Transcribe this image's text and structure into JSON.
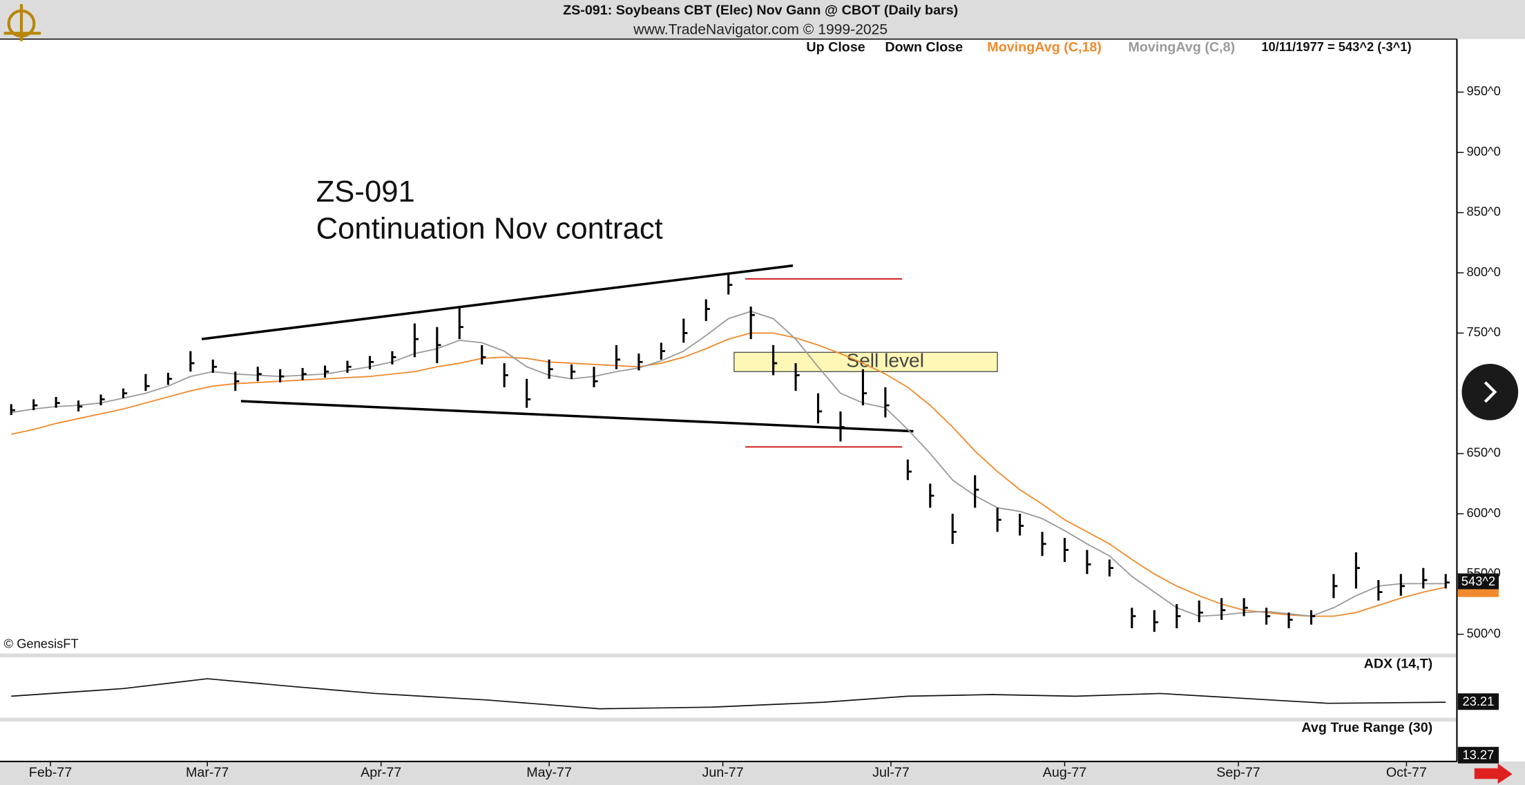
{
  "chart_data": {
    "type": "ohlc",
    "title": "ZS-091:  Soybeans CBT (Elec) Nov Gann @ CBOT  (Daily bars)",
    "subtitle": "www.TradeNavigator.com © 1999-2025",
    "annotations": [
      "ZS-091",
      "Continuation Nov contract"
    ],
    "copyright": "© GenesisFT",
    "legend_extra": [
      "Up Close",
      "Down Close"
    ],
    "status": "10/11/1977 = 543^2 (-3^1)",
    "xlim": [
      23,
      283
    ],
    "ylim": [
      484,
      994
    ],
    "xticks": [
      {
        "value": 32,
        "label": "Feb-77"
      },
      {
        "value": 60,
        "label": "Mar-77"
      },
      {
        "value": 91,
        "label": "Apr-77"
      },
      {
        "value": 121,
        "label": "May-77"
      },
      {
        "value": 152,
        "label": "Jun-77"
      },
      {
        "value": 182,
        "label": "Jul-77"
      },
      {
        "value": 213,
        "label": "Aug-77"
      },
      {
        "value": 244,
        "label": "Sep-77"
      },
      {
        "value": 274,
        "label": "Oct-77"
      }
    ],
    "yticks": [
      {
        "value": 500,
        "label": "500^0"
      },
      {
        "value": 550,
        "label": "550^0"
      },
      {
        "value": 600,
        "label": "600^0"
      },
      {
        "value": 650,
        "label": "650^0"
      },
      {
        "value": 750,
        "label": "750^0"
      },
      {
        "value": 800,
        "label": "800^0"
      },
      {
        "value": 850,
        "label": "850^0"
      },
      {
        "value": 900,
        "label": "900^0"
      },
      {
        "value": 950,
        "label": "950^0"
      }
    ],
    "x": [
      25,
      29,
      33,
      37,
      41,
      45,
      49,
      53,
      57,
      61,
      65,
      69,
      73,
      77,
      81,
      85,
      89,
      93,
      97,
      101,
      105,
      109,
      113,
      117,
      121,
      125,
      129,
      133,
      137,
      141,
      145,
      149,
      153,
      157,
      161,
      165,
      169,
      173,
      177,
      181,
      185,
      189,
      193,
      197,
      201,
      205,
      209,
      213,
      217,
      221,
      225,
      229,
      233,
      237,
      241,
      245,
      249,
      253,
      257,
      261,
      265,
      269,
      273,
      277,
      281
    ],
    "bars": {
      "color": "#000000",
      "high": [
        691,
        695,
        697,
        694,
        699,
        704,
        716,
        717,
        735,
        728,
        718,
        722,
        720,
        721,
        723,
        727,
        731,
        735,
        758,
        755,
        772,
        740,
        725,
        712,
        728,
        724,
        722,
        740,
        733,
        742,
        762,
        778,
        800,
        772,
        740,
        725,
        700,
        685,
        720,
        705,
        645,
        625,
        600,
        632,
        605,
        600,
        585,
        580,
        570,
        562,
        522,
        520,
        525,
        528,
        530,
        530,
        522,
        518,
        520,
        550,
        568,
        545,
        550,
        555,
        550
      ],
      "low": [
        682,
        686,
        688,
        685,
        690,
        696,
        702,
        707,
        718,
        717,
        702,
        710,
        709,
        711,
        713,
        717,
        720,
        724,
        730,
        725,
        745,
        724,
        705,
        688,
        712,
        712,
        705,
        720,
        719,
        728,
        742,
        760,
        782,
        745,
        715,
        702,
        675,
        660,
        690,
        680,
        628,
        605,
        575,
        605,
        585,
        582,
        565,
        560,
        550,
        548,
        505,
        502,
        505,
        510,
        512,
        515,
        508,
        505,
        508,
        530,
        538,
        528,
        532,
        538,
        538
      ],
      "close": [
        686,
        690,
        692,
        689,
        695,
        700,
        706,
        712,
        725,
        722,
        710,
        716,
        714,
        716,
        718,
        722,
        726,
        730,
        745,
        740,
        755,
        730,
        715,
        695,
        720,
        718,
        710,
        728,
        726,
        735,
        750,
        770,
        790,
        765,
        725,
        715,
        685,
        672,
        700,
        690,
        635,
        615,
        585,
        620,
        595,
        590,
        575,
        570,
        558,
        555,
        515,
        510,
        515,
        518,
        520,
        522,
        515,
        512,
        515,
        540,
        555,
        535,
        540,
        545,
        543
      ]
    },
    "series": [
      {
        "name": "MovingAvg (C,18)",
        "color": "#f08a2c",
        "values": [
          666,
          670,
          675,
          679,
          683,
          687,
          692,
          697,
          702,
          706,
          708,
          709,
          710,
          711,
          712,
          713,
          714,
          716,
          718,
          722,
          725,
          729,
          730,
          729,
          726,
          725,
          724,
          723,
          722,
          725,
          730,
          737,
          745,
          750,
          750,
          746,
          740,
          733,
          725,
          716,
          705,
          690,
          672,
          652,
          635,
          620,
          608,
          595,
          585,
          575,
          562,
          550,
          540,
          532,
          525,
          520,
          518,
          516,
          515,
          515,
          518,
          524,
          530,
          535,
          539
        ]
      },
      {
        "name": "MovingAvg (C,8)",
        "color": "#9a9a9a",
        "values": [
          684,
          687,
          689,
          690,
          692,
          696,
          700,
          706,
          714,
          718,
          716,
          715,
          714,
          715,
          716,
          719,
          722,
          726,
          733,
          737,
          744,
          742,
          735,
          722,
          715,
          712,
          714,
          718,
          721,
          727,
          735,
          748,
          762,
          768,
          762,
          745,
          722,
          700,
          692,
          688,
          670,
          650,
          628,
          615,
          605,
          602,
          596,
          586,
          575,
          565,
          548,
          535,
          522,
          515,
          516,
          518,
          519,
          517,
          515,
          522,
          532,
          540,
          542,
          542,
          542
        ]
      }
    ],
    "last_price": {
      "value": 543.25,
      "label": "543^2"
    },
    "sell_zone": {
      "label": "Sell level",
      "x": [
        154,
        201
      ],
      "y": [
        718,
        734
      ]
    },
    "drawings": [
      {
        "color": "#000000",
        "x": [
          59,
          164.5
        ],
        "y": [
          745,
          806
        ]
      },
      {
        "color": "#000000",
        "x": [
          66,
          186
        ],
        "y": [
          693.5,
          668.5
        ]
      },
      {
        "color": "#d42a2a",
        "x": [
          156,
          184
        ],
        "y": [
          795,
          795
        ]
      },
      {
        "color": "#d42a2a",
        "x": [
          156,
          184
        ],
        "y": [
          655.5,
          655.5
        ]
      }
    ],
    "adx": {
      "label": "ADX (14,T)",
      "value": 23.21,
      "ylim": [
        0,
        105
      ],
      "x": [
        25,
        45,
        60,
        75,
        90,
        110,
        130,
        150,
        170,
        185,
        200,
        215,
        230,
        245,
        260,
        281
      ],
      "values": [
        34,
        48,
        66,
        52,
        39,
        27,
        11,
        14,
        23,
        34,
        37,
        34,
        39,
        30,
        21,
        23
      ]
    },
    "atr": {
      "label": "Avg True Range (30)",
      "value": 13.27
    }
  }
}
